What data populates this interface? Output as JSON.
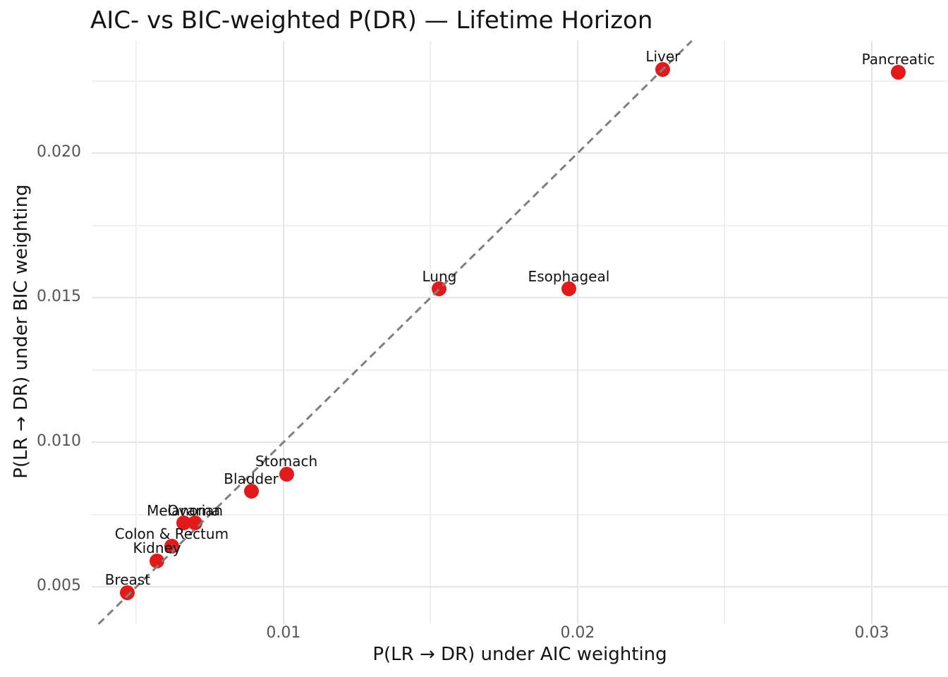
{
  "title": "AIC- vs BIC-weighted P(DR) — Lifetime Horizon",
  "colors": {
    "background": "#ffffff",
    "point": "#e11a1c",
    "grid_major": "#e5e5e5",
    "grid_minor": "#efefef",
    "reference_line": "#7f7f7f",
    "tick_text": "#555555",
    "text": "#141414"
  },
  "chart_data": {
    "type": "scatter",
    "title": "AIC- vs BIC-weighted P(DR) — Lifetime Horizon",
    "xlabel": "P(LR → DR) under AIC weighting",
    "ylabel": "P(LR → DR) under BIC weighting",
    "xlim": [
      0.00348,
      0.03259
    ],
    "ylim": [
      0.00371,
      0.02388
    ],
    "x_ticks": [
      0.01,
      0.02,
      0.03
    ],
    "x_tick_labels": [
      "0.01",
      "0.02",
      "0.03"
    ],
    "x_minor_ticks": [
      0.005,
      0.015,
      0.025
    ],
    "y_ticks": [
      0.005,
      0.01,
      0.015,
      0.02
    ],
    "y_tick_labels": [
      "0.005",
      "0.010",
      "0.015",
      "0.020"
    ],
    "y_minor_ticks": [
      0.0075,
      0.0125,
      0.0175,
      0.0225
    ],
    "grid": true,
    "legend": false,
    "reference_line": {
      "kind": "y=x",
      "style": "dashed",
      "color": "#7f7f7f"
    },
    "points": [
      {
        "label": "Breast",
        "x": 0.0047,
        "y": 0.0048
      },
      {
        "label": "Kidney",
        "x": 0.0057,
        "y": 0.0059
      },
      {
        "label": "Colon & Rectum",
        "x": 0.0062,
        "y": 0.0064
      },
      {
        "label": "Melanoma",
        "x": 0.0066,
        "y": 0.0072
      },
      {
        "label": "Ovarian",
        "x": 0.007,
        "y": 0.0072
      },
      {
        "label": "Bladder",
        "x": 0.0089,
        "y": 0.0083
      },
      {
        "label": "Stomach",
        "x": 0.0101,
        "y": 0.0089
      },
      {
        "label": "Lung",
        "x": 0.0153,
        "y": 0.0153
      },
      {
        "label": "Esophageal",
        "x": 0.0197,
        "y": 0.0153
      },
      {
        "label": "Liver",
        "x": 0.0229,
        "y": 0.0229
      },
      {
        "label": "Pancreatic",
        "x": 0.0309,
        "y": 0.0228
      }
    ]
  }
}
